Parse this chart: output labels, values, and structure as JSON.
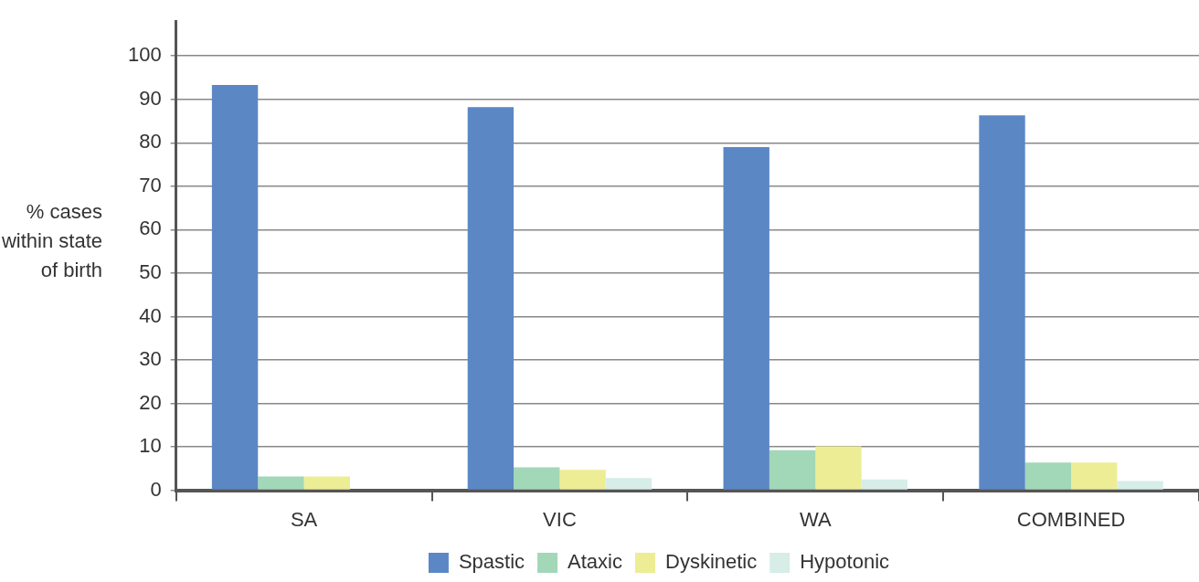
{
  "chart_data": {
    "type": "bar",
    "ylabel": "% cases within state of birth",
    "categories": [
      "SA",
      "VIC",
      "WA",
      "COMBINED"
    ],
    "series": [
      {
        "name": "Spastic",
        "color": "#5b87c5",
        "values": [
          93.3,
          88.2,
          79.0,
          86.3
        ]
      },
      {
        "name": "Ataxic",
        "color": "#a2d7b7",
        "values": [
          3.2,
          5.3,
          9.2,
          6.4
        ]
      },
      {
        "name": "Dyskinetic",
        "color": "#eded95",
        "values": [
          3.2,
          4.7,
          10.1,
          6.4
        ]
      },
      {
        "name": "Hypotonic",
        "color": "#d7ede7",
        "values": [
          0,
          2.8,
          2.5,
          2.1
        ]
      }
    ],
    "ylim": [
      0,
      108
    ],
    "yticks": [
      0,
      10,
      20,
      30,
      40,
      50,
      60,
      70,
      80,
      90,
      100
    ],
    "grid": "y",
    "legend": "bottom"
  }
}
